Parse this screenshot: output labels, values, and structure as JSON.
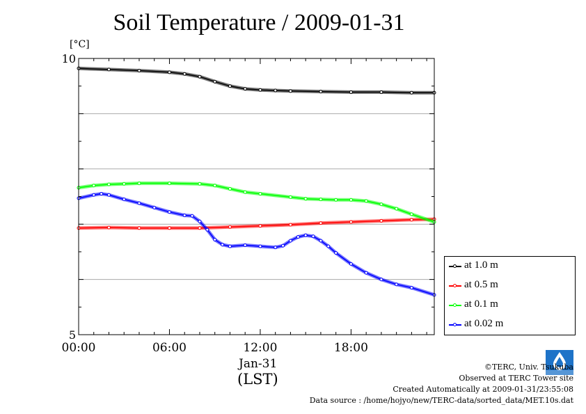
{
  "title": "Soil Temperature / 2009-01-31",
  "unit_label": "[°C]",
  "x_date_label": "Jan-31",
  "x_tz_label": "(LST)",
  "credits": {
    "copyright": "©TERC, Univ. Tsukuba",
    "site": "Observed at TERC Tower site",
    "created": "Created Automatically at 2009-01-31/23:55:08",
    "source": "Data source : /home/hojyo/new/TERC-data/sorted_data/MET.10s.dat"
  },
  "chart_data": {
    "type": "line",
    "title": "Soil Temperature / 2009-01-31",
    "ylabel": "[°C]",
    "xlabel": "Jan-31 (LST)",
    "ylim": [
      5,
      10
    ],
    "xlim": [
      0,
      23.5
    ],
    "xticks": [
      0,
      6,
      12,
      18
    ],
    "xtick_labels": [
      "00:00",
      "06:00",
      "12:00",
      "18:00"
    ],
    "yticks": [
      5,
      10
    ],
    "ytick_labels": [
      "5",
      "10"
    ],
    "grid": true,
    "legend_position": "bottom-right-outside",
    "series": [
      {
        "name": "at 1.0 m",
        "color": "#000000",
        "x": [
          0,
          2,
          4,
          6,
          7,
          8,
          9,
          10,
          11,
          12,
          13,
          14,
          16,
          18,
          20,
          22,
          23.5
        ],
        "y": [
          9.82,
          9.8,
          9.78,
          9.75,
          9.72,
          9.67,
          9.58,
          9.5,
          9.45,
          9.43,
          9.42,
          9.41,
          9.4,
          9.39,
          9.39,
          9.38,
          9.38
        ]
      },
      {
        "name": "at 0.5 m",
        "color": "#ff0000",
        "x": [
          0,
          2,
          4,
          6,
          8,
          10,
          12,
          14,
          16,
          18,
          20,
          22,
          23.5
        ],
        "y": [
          6.93,
          6.94,
          6.93,
          6.93,
          6.93,
          6.95,
          6.97,
          6.99,
          7.02,
          7.04,
          7.06,
          7.08,
          7.09
        ]
      },
      {
        "name": "at 0.1 m",
        "color": "#00ff00",
        "x": [
          0,
          1,
          2,
          3,
          4,
          6,
          8,
          9,
          10,
          11,
          12,
          14,
          15,
          16,
          17,
          18,
          19,
          20,
          21,
          22,
          23.5
        ],
        "y": [
          7.66,
          7.7,
          7.72,
          7.73,
          7.74,
          7.74,
          7.73,
          7.7,
          7.64,
          7.58,
          7.55,
          7.49,
          7.46,
          7.45,
          7.44,
          7.44,
          7.42,
          7.36,
          7.28,
          7.18,
          7.04
        ]
      },
      {
        "name": "at 0.02 m",
        "color": "#0000ff",
        "x": [
          0,
          1,
          1.5,
          2,
          3,
          4,
          5,
          6,
          7,
          7.5,
          8,
          8.5,
          9,
          9.5,
          10,
          11,
          12,
          13,
          13.5,
          14,
          14.5,
          15,
          15.5,
          16,
          16.5,
          17,
          18,
          19,
          20,
          21,
          22,
          23.5
        ],
        "y": [
          7.47,
          7.53,
          7.55,
          7.53,
          7.45,
          7.38,
          7.3,
          7.22,
          7.16,
          7.15,
          7.05,
          6.9,
          6.72,
          6.63,
          6.6,
          6.62,
          6.6,
          6.58,
          6.61,
          6.7,
          6.77,
          6.8,
          6.78,
          6.7,
          6.6,
          6.48,
          6.28,
          6.12,
          6.0,
          5.91,
          5.85,
          5.72
        ]
      }
    ]
  },
  "legend": [
    {
      "label": "at 1.0 m",
      "color": "#000000"
    },
    {
      "label": "at 0.5 m",
      "color": "#ff0000"
    },
    {
      "label": "at 0.1 m",
      "color": "#00ff00"
    },
    {
      "label": "at 0.02 m",
      "color": "#0000ff"
    }
  ]
}
